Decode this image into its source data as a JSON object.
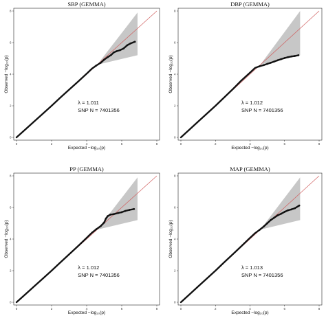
{
  "chart_data": [
    {
      "type": "scatter",
      "title": "SBP (GEMMA)",
      "xlabel": "Expected −log₁₀(p)",
      "ylabel": "Observed −log₁₀(p)",
      "xlim": [
        0,
        8
      ],
      "ylim": [
        0,
        8
      ],
      "xticks": [
        "0",
        "2",
        "4",
        "6",
        "8"
      ],
      "yticks": [
        "0",
        "2",
        "4",
        "6",
        "8"
      ],
      "lambda": "λ = 1.011",
      "snp_n": "SNP N = 7401356",
      "ci_band": {
        "start_x": 4.6,
        "end_x": 6.9,
        "end_lower": 5.2,
        "end_upper": 7.9
      },
      "points": [
        [
          0,
          0
        ],
        [
          0.5,
          0.5
        ],
        [
          1,
          1
        ],
        [
          1.5,
          1.5
        ],
        [
          2,
          2
        ],
        [
          2.5,
          2.52
        ],
        [
          3,
          3.02
        ],
        [
          3.5,
          3.52
        ],
        [
          4,
          4.03
        ],
        [
          4.3,
          4.35
        ],
        [
          4.55,
          4.55
        ],
        [
          4.8,
          4.72
        ],
        [
          5.0,
          4.92
        ],
        [
          5.2,
          5.08
        ],
        [
          5.4,
          5.22
        ],
        [
          5.55,
          5.38
        ],
        [
          5.7,
          5.45
        ],
        [
          5.9,
          5.52
        ],
        [
          6.1,
          5.62
        ],
        [
          6.3,
          5.82
        ],
        [
          6.5,
          5.95
        ],
        [
          6.75,
          6.05
        ]
      ],
      "grid": false
    },
    {
      "type": "scatter",
      "title": "DBP (GEMMA)",
      "xlabel": "Expected −log₁₀(p)",
      "ylabel": "Observed −log₁₀(p)",
      "xlim": [
        0,
        8
      ],
      "ylim": [
        0,
        8
      ],
      "xticks": [
        "0",
        "2",
        "4",
        "6",
        "8"
      ],
      "yticks": [
        "0",
        "2",
        "4",
        "6",
        "8"
      ],
      "lambda": "λ = 1.012",
      "snp_n": "SNP N = 7401356",
      "ci_band": {
        "start_x": 4.6,
        "end_x": 6.9,
        "end_lower": 5.2,
        "end_upper": 8.0
      },
      "points": [
        [
          0,
          0
        ],
        [
          0.5,
          0.5
        ],
        [
          1,
          1
        ],
        [
          1.5,
          1.5
        ],
        [
          2,
          2
        ],
        [
          2.5,
          2.52
        ],
        [
          3,
          3.05
        ],
        [
          3.5,
          3.6
        ],
        [
          4,
          4.1
        ],
        [
          4.3,
          4.4
        ],
        [
          4.55,
          4.5
        ],
        [
          4.8,
          4.58
        ],
        [
          5.0,
          4.65
        ],
        [
          5.2,
          4.72
        ],
        [
          5.4,
          4.8
        ],
        [
          5.6,
          4.88
        ],
        [
          5.8,
          4.95
        ],
        [
          6.0,
          5.02
        ],
        [
          6.2,
          5.08
        ],
        [
          6.4,
          5.12
        ],
        [
          6.6,
          5.15
        ],
        [
          6.8,
          5.2
        ]
      ],
      "grid": false
    },
    {
      "type": "scatter",
      "title": "PP (GEMMA)",
      "xlabel": "Expected −log₁₀(p)",
      "ylabel": "Observed −log₁₀(p)",
      "xlim": [
        0,
        8
      ],
      "ylim": [
        0,
        8
      ],
      "xticks": [
        "0",
        "2",
        "4",
        "6",
        "8"
      ],
      "yticks": [
        "0",
        "2",
        "4",
        "6",
        "8"
      ],
      "lambda": "λ = 1.012",
      "snp_n": "SNP N = 7401356",
      "ci_band": {
        "start_x": 4.6,
        "end_x": 6.9,
        "end_lower": 5.2,
        "end_upper": 7.9
      },
      "points": [
        [
          0,
          0
        ],
        [
          0.5,
          0.5
        ],
        [
          1,
          1
        ],
        [
          1.5,
          1.5
        ],
        [
          2,
          2
        ],
        [
          2.5,
          2.52
        ],
        [
          3,
          3.03
        ],
        [
          3.5,
          3.55
        ],
        [
          4,
          4.08
        ],
        [
          4.3,
          4.4
        ],
        [
          4.55,
          4.62
        ],
        [
          4.8,
          4.82
        ],
        [
          5.0,
          5.05
        ],
        [
          5.1,
          5.3
        ],
        [
          5.2,
          5.45
        ],
        [
          5.35,
          5.55
        ],
        [
          5.55,
          5.58
        ],
        [
          5.8,
          5.65
        ],
        [
          6.0,
          5.7
        ],
        [
          6.2,
          5.78
        ],
        [
          6.45,
          5.85
        ],
        [
          6.7,
          5.9
        ]
      ],
      "grid": false
    },
    {
      "type": "scatter",
      "title": "MAP (GEMMA)",
      "xlabel": "Expected −log₁₀(p)",
      "ylabel": "Observed −log₁₀(p)",
      "xlim": [
        0,
        8
      ],
      "ylim": [
        0,
        8
      ],
      "xticks": [
        "0",
        "2",
        "4",
        "6",
        "8"
      ],
      "yticks": [
        "0",
        "2",
        "4",
        "6",
        "8"
      ],
      "lambda": "λ = 1.013",
      "snp_n": "SNP N = 7401356",
      "ci_band": {
        "start_x": 4.6,
        "end_x": 6.9,
        "end_lower": 5.2,
        "end_upper": 7.9
      },
      "points": [
        [
          0,
          0
        ],
        [
          0.5,
          0.5
        ],
        [
          1,
          1
        ],
        [
          1.5,
          1.5
        ],
        [
          2,
          2
        ],
        [
          2.5,
          2.52
        ],
        [
          3,
          3.03
        ],
        [
          3.5,
          3.55
        ],
        [
          4,
          4.08
        ],
        [
          4.3,
          4.38
        ],
        [
          4.55,
          4.58
        ],
        [
          4.8,
          4.8
        ],
        [
          5.0,
          5.0
        ],
        [
          5.2,
          5.2
        ],
        [
          5.4,
          5.35
        ],
        [
          5.6,
          5.5
        ],
        [
          5.8,
          5.6
        ],
        [
          6.0,
          5.72
        ],
        [
          6.2,
          5.82
        ],
        [
          6.4,
          5.88
        ],
        [
          6.6,
          5.95
        ],
        [
          6.85,
          6.12
        ]
      ],
      "grid": false
    }
  ],
  "colors": {
    "points": "#111111",
    "reference_line": "#d06060",
    "ci_band": "#bdbdbd",
    "axes": "#222222"
  }
}
